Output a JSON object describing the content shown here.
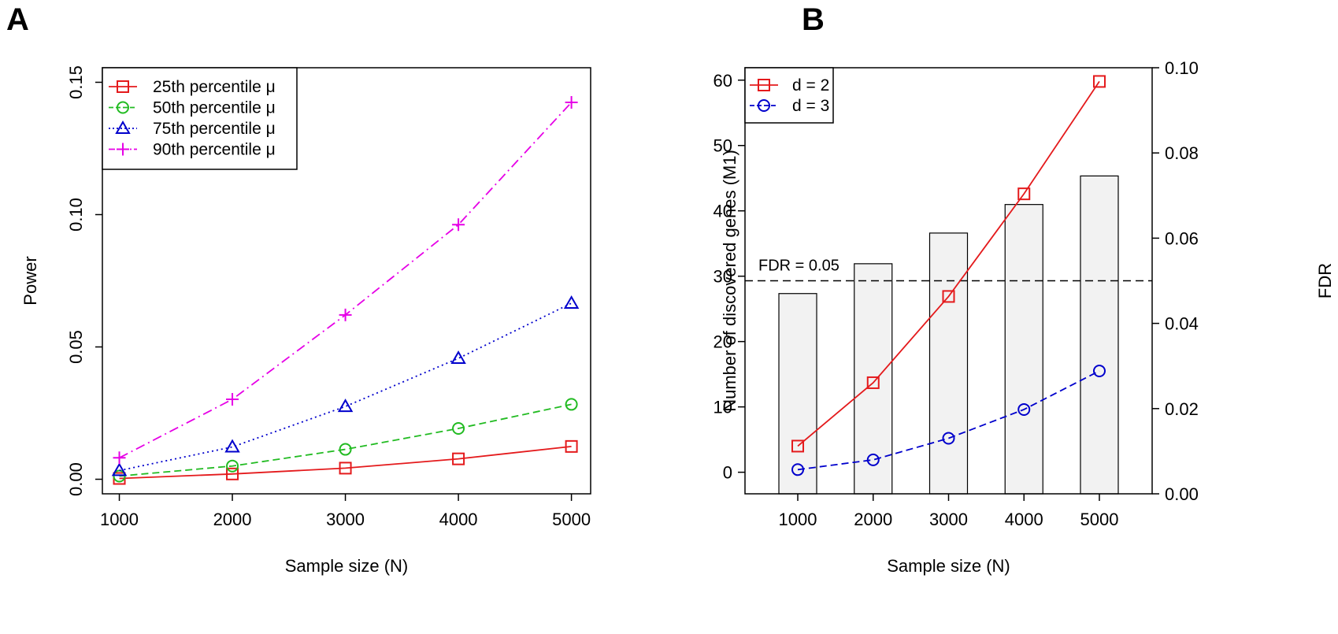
{
  "chart_data": [
    {
      "panel": "A",
      "type": "line",
      "xlabel": "Sample size (N)",
      "ylabel": "Power",
      "x": [
        1000,
        2000,
        3000,
        4000,
        5000
      ],
      "xticks": [
        "1000",
        "2000",
        "3000",
        "4000",
        "5000"
      ],
      "xlim": [
        850,
        5170
      ],
      "ylim": [
        -0.0055,
        0.1555
      ],
      "yticks": [
        "0.00",
        "0.05",
        "0.10",
        "0.15"
      ],
      "ytick_values": [
        0,
        0.05,
        0.1,
        0.15
      ],
      "legend_position": "top-left",
      "series": [
        {
          "name": "25th percentile μ",
          "marker": "square",
          "color": "#e41a1c",
          "dash": "",
          "values": [
            0.0003,
            0.002,
            0.0042,
            0.0077,
            0.0124
          ]
        },
        {
          "name": "50th percentile μ",
          "marker": "circle",
          "color": "#22bb22",
          "dash": "9 5",
          "values": [
            0.0012,
            0.005,
            0.0113,
            0.0192,
            0.0283
          ]
        },
        {
          "name": "75th percentile μ",
          "marker": "triangle",
          "color": "#0000cc",
          "dash": "2 4",
          "values": [
            0.0033,
            0.0122,
            0.0275,
            0.0457,
            0.0665
          ]
        },
        {
          "name": "90th percentile μ",
          "marker": "plus",
          "color": "#e600e6",
          "dash": "12 5 2 5",
          "values": [
            0.0081,
            0.0302,
            0.0621,
            0.0962,
            0.1424
          ]
        }
      ]
    },
    {
      "panel": "B",
      "type": "bar+line",
      "xlabel": "Sample size (N)",
      "ylabel": "Number of discovered genes (M1)",
      "y2label": "FDR",
      "categories": [
        "1000",
        "2000",
        "3000",
        "4000",
        "5000"
      ],
      "x": [
        1000,
        2000,
        3000,
        4000,
        5000
      ],
      "xlim": [
        300,
        5700
      ],
      "ylim": [
        -3.3,
        61.9
      ],
      "yticks": [
        "0",
        "10",
        "20",
        "30",
        "40",
        "50",
        "60"
      ],
      "ytick_values": [
        0,
        10,
        20,
        30,
        40,
        50,
        60
      ],
      "y2lim": [
        0,
        0.1
      ],
      "y2ticks": [
        "0.00",
        "0.02",
        "0.04",
        "0.06",
        "0.08",
        "0.10"
      ],
      "y2tick_values": [
        0,
        0.02,
        0.04,
        0.06,
        0.08,
        0.1
      ],
      "bars_fdr": [
        0.047,
        0.054,
        0.0612,
        0.0679,
        0.0746
      ],
      "bar_fill": "#f2f2f2",
      "reference_line": {
        "label": "FDR = 0.05",
        "fdr": 0.05
      },
      "legend_position": "top-left",
      "series": [
        {
          "name": "d = 2",
          "marker": "square",
          "color": "#e41a1c",
          "dash": "",
          "values": [
            4.0,
            13.7,
            26.9,
            42.6,
            59.8
          ]
        },
        {
          "name": "d = 3",
          "marker": "circle",
          "color": "#0000cc",
          "dash": "9 5",
          "values": [
            0.4,
            1.9,
            5.2,
            9.6,
            15.5
          ]
        }
      ]
    }
  ]
}
